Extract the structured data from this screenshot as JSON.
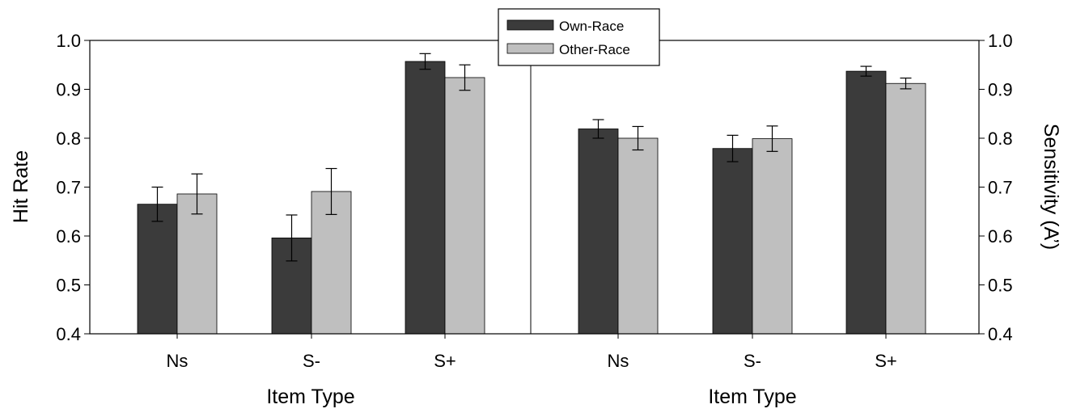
{
  "chart_data": {
    "type": "bar",
    "legend": {
      "placement": "top-center",
      "entries": [
        {
          "name": "Own-Race",
          "color": "#3b3b3b"
        },
        {
          "name": "Other-Race",
          "color": "#bfbfbf"
        }
      ]
    },
    "panels": [
      {
        "ylabel": "Hit Rate",
        "xlabel": "Item Type",
        "ylim": [
          0.4,
          1.0
        ],
        "yticks": [
          "0.4",
          "0.5",
          "0.6",
          "0.7",
          "0.8",
          "0.9",
          "1.0"
        ],
        "categories": [
          "Ns",
          "S-",
          "S+"
        ],
        "series": [
          {
            "name": "Own-Race",
            "values": [
              0.665,
              0.596,
              0.957
            ],
            "errors": [
              0.035,
              0.047,
              0.016
            ]
          },
          {
            "name": "Other-Race",
            "values": [
              0.686,
              0.691,
              0.924
            ],
            "errors": [
              0.041,
              0.047,
              0.026
            ]
          }
        ]
      },
      {
        "ylabel": "Sensitivity (A’)",
        "xlabel": "Item Type",
        "ylim": [
          0.4,
          1.0
        ],
        "yticks": [
          "0.4",
          "0.5",
          "0.6",
          "0.7",
          "0.8",
          "0.9",
          "1.0"
        ],
        "categories": [
          "Ns",
          "S-",
          "S+"
        ],
        "series": [
          {
            "name": "Own-Race",
            "values": [
              0.819,
              0.779,
              0.937
            ],
            "errors": [
              0.019,
              0.027,
              0.01
            ]
          },
          {
            "name": "Other-Race",
            "values": [
              0.8,
              0.799,
              0.912
            ],
            "errors": [
              0.024,
              0.026,
              0.011
            ]
          }
        ]
      }
    ]
  }
}
